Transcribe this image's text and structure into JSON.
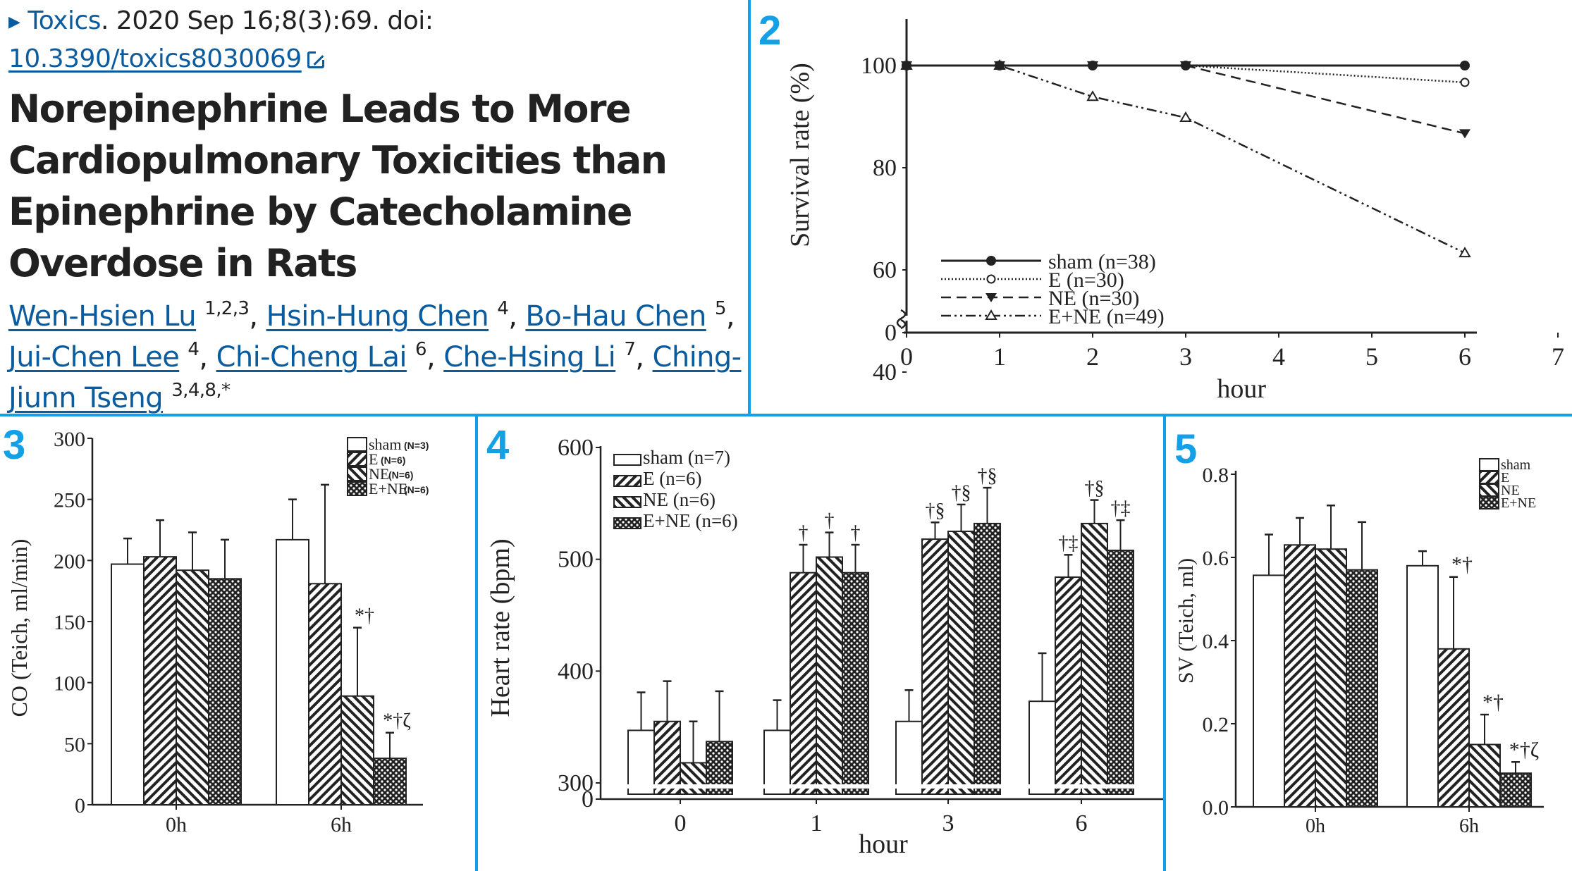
{
  "citation": {
    "journal": "Toxics",
    "details": ". 2020 Sep 16;8(3):69. doi:",
    "doi": "10.3390/toxics8030069",
    "title": "Norepinephrine Leads to More Cardiopulmonary Toxicities than Epinephrine by Catecholamine Overdose in Rats",
    "authors": [
      {
        "name": "Wen-Hsien Lu",
        "aff": "1,2,3"
      },
      {
        "name": "Hsin-Hung Chen",
        "aff": "4"
      },
      {
        "name": "Bo-Hau Chen",
        "aff": "5"
      },
      {
        "name": "Jui-Chen Lee",
        "aff": "4"
      },
      {
        "name": "Chi-Cheng Lai",
        "aff": "6"
      },
      {
        "name": "Che-Hsing Li",
        "aff": "7"
      },
      {
        "name": "Ching-Jiunn Tseng",
        "aff": "3,4,8,*"
      }
    ]
  },
  "colors": {
    "divider": "#14a0e6",
    "link": "#0b5c9e",
    "panel_number": "#14a0e6"
  },
  "panels": [
    {
      "number": "2"
    },
    {
      "number": "3"
    },
    {
      "number": "4"
    },
    {
      "number": "5"
    }
  ],
  "chart_data": [
    {
      "panel": "2",
      "type": "line",
      "title": "",
      "xlabel": "hour",
      "ylabel": "Survival rate (%)",
      "x_ticks": [
        0,
        1,
        2,
        3,
        4,
        5,
        6,
        7
      ],
      "y_ticks": [
        0,
        40,
        60,
        80,
        100
      ],
      "axis_break": "between 0 and 40",
      "xlim": [
        0,
        7
      ],
      "ylim": [
        0,
        100
      ],
      "legend_position": "bottom-left",
      "series": [
        {
          "name": "sham (n=38)",
          "marker": "filled-circle",
          "line": "solid",
          "x": [
            0,
            1,
            2,
            3,
            6
          ],
          "y": [
            100,
            100,
            100,
            100,
            100
          ]
        },
        {
          "name": "E (n=30)",
          "marker": "open-circle",
          "line": "dotted",
          "x": [
            0,
            1,
            2,
            3,
            6
          ],
          "y": [
            100,
            100,
            100,
            100,
            96.7
          ]
        },
        {
          "name": "NE (n=30)",
          "marker": "filled-triangle-down",
          "line": "dashed",
          "x": [
            0,
            1,
            2,
            3,
            6
          ],
          "y": [
            100,
            100,
            100,
            100,
            86.7
          ]
        },
        {
          "name": "E+NE (n=49)",
          "marker": "open-triangle-up",
          "line": "dash-dot",
          "x": [
            0,
            1,
            2,
            3,
            6
          ],
          "y": [
            100,
            100,
            93.9,
            89.8,
            63.3
          ]
        }
      ]
    },
    {
      "panel": "3",
      "type": "bar",
      "title": "",
      "xlabel": "",
      "ylabel": "CO (Teich, ml/min)",
      "categories": [
        "0h",
        "6h"
      ],
      "y_ticks": [
        0,
        50,
        100,
        150,
        200,
        250,
        300
      ],
      "ylim": [
        0,
        300
      ],
      "legend_position": "top-right",
      "series": [
        {
          "name": "sham",
          "n_label": "(N=3)",
          "pattern": "white",
          "values": [
            197,
            217
          ],
          "error_top": [
            218,
            250
          ]
        },
        {
          "name": "E",
          "n_label": "(N=6)",
          "pattern": "hatch-right",
          "values": [
            203,
            181
          ],
          "error_top": [
            233,
            262
          ]
        },
        {
          "name": "NE",
          "n_label": "(N=6)",
          "pattern": "hatch-left",
          "values": [
            192,
            89
          ],
          "error_top": [
            223,
            145
          ]
        },
        {
          "name": "E+NE",
          "n_label": "(N=6)",
          "pattern": "checker",
          "values": [
            185,
            38
          ],
          "error_top": [
            217,
            59
          ]
        }
      ],
      "annotations": [
        {
          "category": "6h",
          "series": "NE",
          "text": "*†"
        },
        {
          "category": "6h",
          "series": "E+NE",
          "text": "*†ζ"
        }
      ]
    },
    {
      "panel": "4",
      "type": "bar",
      "title": "",
      "xlabel": "hour",
      "ylabel": "Heart rate (bpm)",
      "categories": [
        "0",
        "1",
        "3",
        "6"
      ],
      "y_ticks": [
        0,
        300,
        400,
        500,
        600
      ],
      "axis_break": "between 0 and 300",
      "ylim": [
        300,
        600
      ],
      "legend_position": "top-left",
      "series": [
        {
          "name": "sham (n=7)",
          "pattern": "white",
          "values": [
            347,
            347,
            355,
            373
          ],
          "error_top": [
            381,
            374,
            383,
            416
          ]
        },
        {
          "name": "E (n=6)",
          "pattern": "hatch-right",
          "values": [
            355,
            488,
            518,
            484
          ],
          "error_top": [
            391,
            513,
            533,
            504
          ]
        },
        {
          "name": "NE (n=6)",
          "pattern": "hatch-left",
          "values": [
            318,
            502,
            525,
            532
          ],
          "error_top": [
            355,
            524,
            549,
            553
          ]
        },
        {
          "name": "E+NE (n=6)",
          "pattern": "checker",
          "values": [
            337,
            488,
            532,
            508
          ],
          "error_top": [
            382,
            513,
            564,
            535
          ]
        }
      ],
      "annotations": [
        {
          "category": "1",
          "series": "E (n=6)",
          "text": "†"
        },
        {
          "category": "1",
          "series": "NE (n=6)",
          "text": "†"
        },
        {
          "category": "1",
          "series": "E+NE (n=6)",
          "text": "†"
        },
        {
          "category": "3",
          "series": "E (n=6)",
          "text": "†§"
        },
        {
          "category": "3",
          "series": "NE (n=6)",
          "text": "†§"
        },
        {
          "category": "3",
          "series": "E+NE (n=6)",
          "text": "†§"
        },
        {
          "category": "6",
          "series": "E (n=6)",
          "text": "†‡"
        },
        {
          "category": "6",
          "series": "NE (n=6)",
          "text": "†§"
        },
        {
          "category": "6",
          "series": "E+NE (n=6)",
          "text": "†‡"
        }
      ]
    },
    {
      "panel": "5",
      "type": "bar",
      "title": "",
      "xlabel": "",
      "ylabel": "SV (Teich, ml)",
      "categories": [
        "0h",
        "6h"
      ],
      "y_ticks": [
        0.0,
        0.2,
        0.4,
        0.6,
        0.8
      ],
      "y_tick_labels": [
        "0.0",
        "0.2",
        "0.4",
        "0.6",
        "0.8"
      ],
      "ylim": [
        0,
        0.8
      ],
      "legend_position": "top-right",
      "series": [
        {
          "name": "sham",
          "pattern": "white",
          "values": [
            0.557,
            0.58
          ],
          "error_top": [
            0.655,
            0.615
          ]
        },
        {
          "name": "E",
          "pattern": "hatch-right",
          "values": [
            0.63,
            0.38
          ],
          "error_top": [
            0.695,
            0.553
          ]
        },
        {
          "name": "NE",
          "pattern": "hatch-left",
          "values": [
            0.62,
            0.15
          ],
          "error_top": [
            0.725,
            0.222
          ]
        },
        {
          "name": "E+NE",
          "pattern": "checker",
          "values": [
            0.57,
            0.081
          ],
          "error_top": [
            0.685,
            0.108
          ]
        }
      ],
      "annotations": [
        {
          "category": "6h",
          "series": "E",
          "text": "*†"
        },
        {
          "category": "6h",
          "series": "NE",
          "text": "*†"
        },
        {
          "category": "6h",
          "series": "E+NE",
          "text": "*†ζ"
        }
      ]
    }
  ]
}
